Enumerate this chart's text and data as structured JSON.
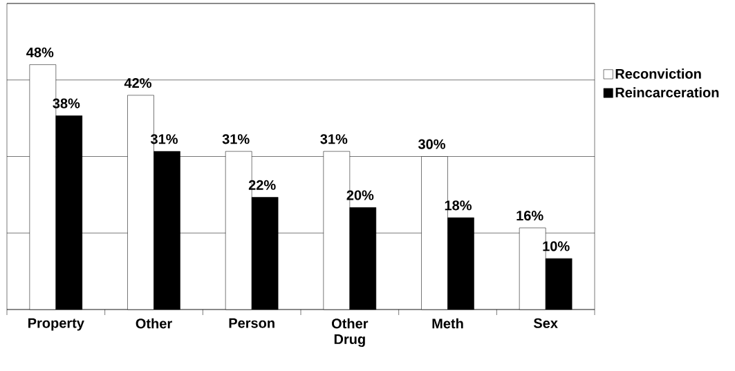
{
  "chart_data": {
    "type": "bar",
    "categories": [
      "Property",
      "Other",
      "Person",
      "Other Drug",
      "Meth",
      "Sex"
    ],
    "series": [
      {
        "name": "Reconviction",
        "color": "#ffffff",
        "values": [
          48,
          42,
          31,
          31,
          30,
          16
        ],
        "value_labels": [
          "48%",
          "42%",
          "31%",
          "31%",
          "30%",
          "16%"
        ]
      },
      {
        "name": "Reincarceration",
        "color": "#000000",
        "values": [
          38,
          31,
          22,
          20,
          18,
          10
        ],
        "value_labels": [
          "38%",
          "31%",
          "22%",
          "20%",
          "18%",
          "10%"
        ]
      }
    ],
    "ylim": [
      0,
      60
    ],
    "yticks": [
      {
        "value": 0,
        "label": null
      },
      {
        "value": 15,
        "label": null
      },
      {
        "value": 30,
        "label": null
      },
      {
        "value": 45,
        "label": null
      },
      {
        "value": 60,
        "label": null
      }
    ],
    "grid": "y",
    "legend": "right",
    "tick_labels": "x"
  }
}
